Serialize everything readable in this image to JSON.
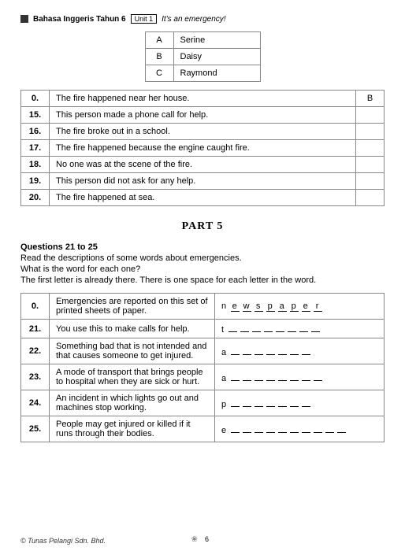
{
  "header": {
    "book": "Bahasa Inggeris Tahun 6",
    "unit": "Unit 1",
    "title": "It's an emergency!"
  },
  "key_table": [
    {
      "letter": "A",
      "name": "Serine"
    },
    {
      "letter": "B",
      "name": "Daisy"
    },
    {
      "letter": "C",
      "name": "Raymond"
    }
  ],
  "q_table": [
    {
      "num": "0.",
      "text": "The fire happened near her house.",
      "ans": "B"
    },
    {
      "num": "15.",
      "text": "This person made a phone call for help.",
      "ans": ""
    },
    {
      "num": "16.",
      "text": "The fire broke out in a school.",
      "ans": ""
    },
    {
      "num": "17.",
      "text": "The fire happened because the engine caught fire.",
      "ans": ""
    },
    {
      "num": "18.",
      "text": "No one was at the scene of the fire.",
      "ans": ""
    },
    {
      "num": "19.",
      "text": "This person did not ask for any help.",
      "ans": ""
    },
    {
      "num": "20.",
      "text": "The fire happened at sea.",
      "ans": ""
    }
  ],
  "part5": {
    "title": "PART 5",
    "range": "Questions 21 to 25",
    "inst1": "Read the descriptions of some words about emergencies.",
    "inst2": "What is the word for each one?",
    "inst3": "The first letter is already there. There is one space for each letter in the word."
  },
  "w_table": [
    {
      "num": "0.",
      "desc": "Emergencies are reported on this set of printed sheets of paper.",
      "first": "n",
      "rest": "ewspaper",
      "blanks": 0
    },
    {
      "num": "21.",
      "desc": "You use this to make calls for help.",
      "first": "t",
      "rest": "",
      "blanks": 8
    },
    {
      "num": "22.",
      "desc": "Something bad that is not intended and that causes someone to get injured.",
      "first": "a",
      "rest": "",
      "blanks": 7
    },
    {
      "num": "23.",
      "desc": "A mode of transport that brings people to hospital when they are sick or hurt.",
      "first": "a",
      "rest": "",
      "blanks": 8
    },
    {
      "num": "24.",
      "desc": "An incident in which lights go out and machines stop working.",
      "first": "p",
      "rest": "",
      "blanks": 7
    },
    {
      "num": "25.",
      "desc": "People may get injured or killed if it runs through their bodies.",
      "first": "e",
      "rest": "",
      "blanks": 10
    }
  ],
  "footer": {
    "copyright": "© Tunas Pelangi Sdn. Bhd.",
    "page": "6"
  }
}
